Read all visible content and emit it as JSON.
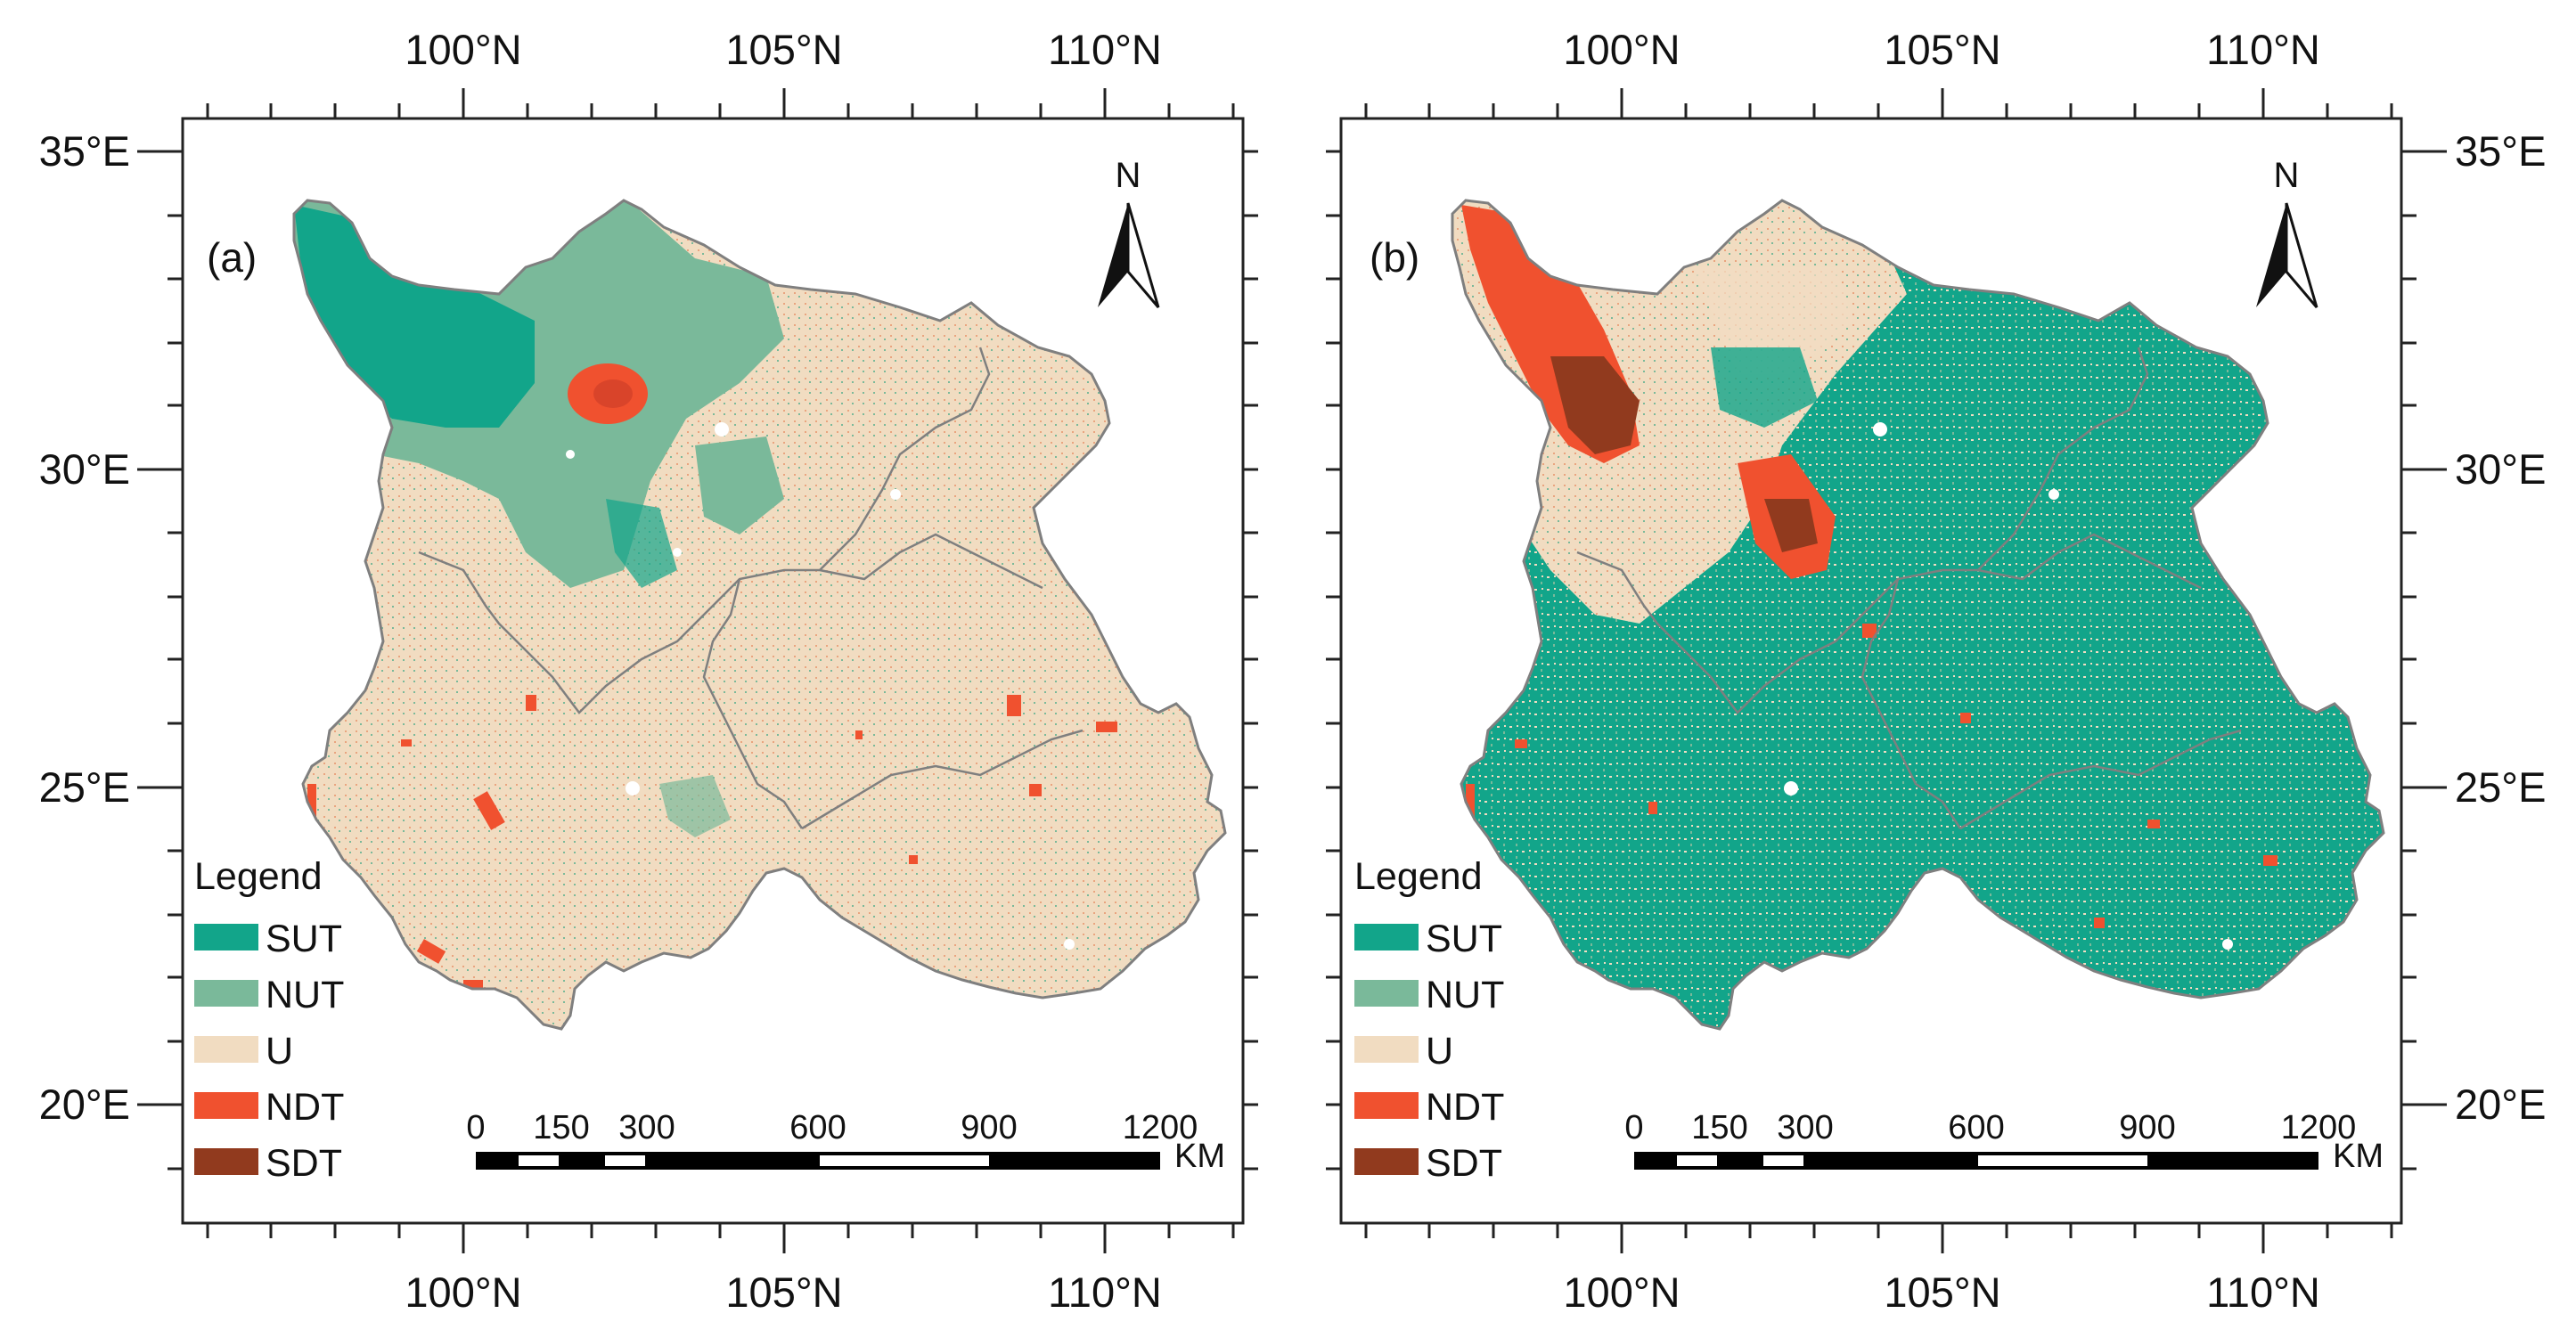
{
  "colors": {
    "SUT": "#12a58a",
    "NUT": "#7ab99a",
    "U": "#f1dcc1",
    "NDT": "#f0512f",
    "SDT": "#913a1e",
    "boundary": "#7f7f7f",
    "frame": "#222222"
  },
  "axes": {
    "longitude_labels": [
      "100°N",
      "105°N",
      "110°N"
    ],
    "latitude_labels": [
      "35°E",
      "30°E",
      "25°E",
      "20°E"
    ]
  },
  "legend": {
    "title": "Legend",
    "items": [
      {
        "label": "SUT",
        "color": "#12a58a"
      },
      {
        "label": "NUT",
        "color": "#7ab99a"
      },
      {
        "label": "U",
        "color": "#f1dcc1"
      },
      {
        "label": "NDT",
        "color": "#f0512f"
      },
      {
        "label": "SDT",
        "color": "#913a1e"
      }
    ]
  },
  "scale_bar": {
    "labels": [
      "0",
      "150",
      "300",
      "600",
      "900",
      "1200"
    ],
    "unit": "KM"
  },
  "north_arrow": {
    "letter": "N"
  },
  "panels": [
    {
      "label": "(a)",
      "dominant_class": "U",
      "description_icon": "map-panel-a"
    },
    {
      "label": "(b)",
      "dominant_class": "SUT",
      "description_icon": "map-panel-b"
    }
  ]
}
